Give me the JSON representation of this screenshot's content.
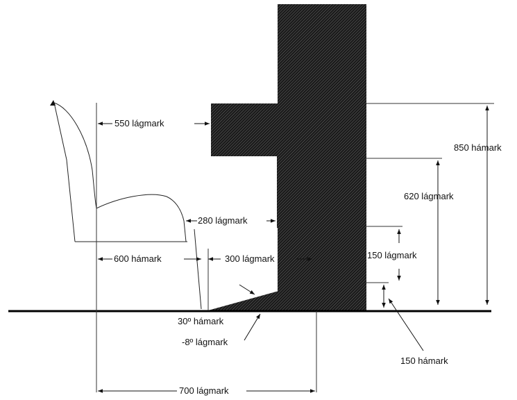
{
  "labels": {
    "top_width": "550 lágmark",
    "height_max": "850 hámark",
    "height_min": "620 lágmark",
    "seat_gap": "280 lágmark",
    "chair_depth": "600 hámark",
    "footrest_depth": "300 lágmark",
    "step_height_min": "150 lágmark",
    "angle_max": "30º hámark",
    "angle_min": "-8º lágmark",
    "step_height_max": "150 hámark",
    "total_depth": "700 lágmark"
  },
  "colors": {
    "background": "#ffffff",
    "line": "#111111",
    "hatch_dark": "#1a1a1a",
    "hatch_light": "#6a6a6a"
  }
}
